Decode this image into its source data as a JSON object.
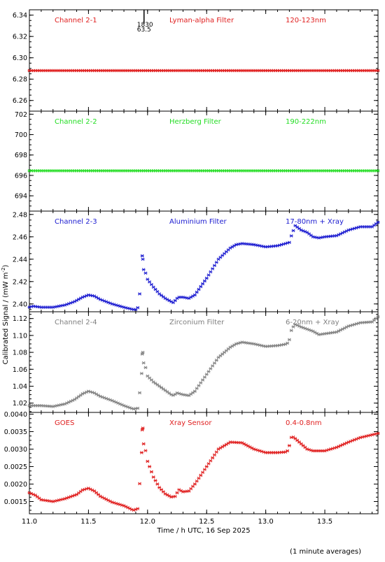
{
  "chart_data": {
    "type": "scatter",
    "xlabel": "Time / h UTC, 16 Sep 2025",
    "ylabel": "Calibrated Signal / (mW m",
    "ylabel_sup": "-2",
    "ylabel_close": ")",
    "footnote": "(1 minute averages)",
    "marker_annotation": [
      "1830",
      "63.5"
    ],
    "marker_x": 11.97,
    "xlim": [
      11.0,
      13.95
    ],
    "xticks": [
      11.0,
      11.5,
      12.0,
      12.5,
      13.0,
      13.5
    ],
    "xtick_labels": [
      "11.0",
      "11.5",
      "12.0",
      "12.5",
      "13.0",
      "13.5"
    ],
    "panels": [
      {
        "channel": "Channel 2-1",
        "filter": "Lyman-alpha Filter",
        "band": "120-123nm",
        "color": "#e02020",
        "ylim": [
          6.25,
          6.345
        ],
        "yticks": [
          6.26,
          6.28,
          6.3,
          6.32,
          6.34
        ],
        "ytick_labels": [
          "6.26",
          "6.28",
          "6.30",
          "6.32",
          "6.34"
        ],
        "keypoints": [
          [
            11.0,
            6.288
          ],
          [
            13.95,
            6.288
          ]
        ],
        "gap": null
      },
      {
        "channel": "Channel 2-2",
        "filter": "Herzberg Filter",
        "band": "190-222nm",
        "color": "#22dd22",
        "ylim": [
          692.5,
          702.3
        ],
        "yticks": [
          694,
          696,
          698,
          700,
          702
        ],
        "ytick_labels": [
          "694",
          "696",
          "698",
          "700",
          "702"
        ],
        "keypoints": [
          [
            11.0,
            696.45
          ],
          [
            13.95,
            696.45
          ]
        ],
        "gap": null
      },
      {
        "channel": "Channel 2-3",
        "filter": "Aluminium Filter",
        "band": "17-80nm + Xray",
        "color": "#1a1ad0",
        "ylim": [
          2.393,
          2.483
        ],
        "yticks": [
          2.4,
          2.42,
          2.44,
          2.46,
          2.48
        ],
        "ytick_labels": [
          "2.40",
          "2.42",
          "2.44",
          "2.46",
          "2.48"
        ],
        "keypoints": [
          [
            11.0,
            2.397
          ],
          [
            11.03,
            2.398
          ],
          [
            11.1,
            2.397
          ],
          [
            11.2,
            2.397
          ],
          [
            11.3,
            2.399
          ],
          [
            11.38,
            2.402
          ],
          [
            11.45,
            2.406
          ],
          [
            11.5,
            2.408
          ],
          [
            11.55,
            2.407
          ],
          [
            11.6,
            2.404
          ],
          [
            11.7,
            2.4
          ],
          [
            11.8,
            2.397
          ],
          [
            11.88,
            2.395
          ],
          [
            11.9,
            2.395
          ],
          [
            11.92,
            2.397
          ],
          [
            11.95,
            2.424
          ],
          [
            11.97,
            2.432
          ],
          [
            12.0,
            2.422
          ],
          [
            12.05,
            2.415
          ],
          [
            12.1,
            2.409
          ],
          [
            12.15,
            2.405
          ],
          [
            12.2,
            2.402
          ],
          [
            12.22,
            2.401
          ],
          [
            12.24,
            2.404
          ],
          [
            12.26,
            2.406
          ],
          [
            12.3,
            2.406
          ],
          [
            12.35,
            2.405
          ],
          [
            12.4,
            2.408
          ],
          [
            12.5,
            2.423
          ],
          [
            12.6,
            2.44
          ],
          [
            12.7,
            2.45
          ],
          [
            12.75,
            2.453
          ],
          [
            12.8,
            2.454
          ],
          [
            12.9,
            2.453
          ],
          [
            13.0,
            2.451
          ],
          [
            13.1,
            2.452
          ],
          [
            13.2,
            2.455
          ],
          [
            13.22,
            2.462
          ],
          [
            13.25,
            2.47
          ],
          [
            13.3,
            2.466
          ],
          [
            13.35,
            2.464
          ],
          [
            13.4,
            2.46
          ],
          [
            13.45,
            2.459
          ],
          [
            13.5,
            2.46
          ],
          [
            13.6,
            2.461
          ],
          [
            13.7,
            2.466
          ],
          [
            13.8,
            2.469
          ],
          [
            13.9,
            2.469
          ],
          [
            13.95,
            2.473
          ]
        ],
        "gap": [
          11.94,
          11.96
        ],
        "extra_points": [
          [
            11.96,
            2.44
          ],
          [
            11.955,
            2.443
          ]
        ]
      },
      {
        "channel": "Channel 2-4",
        "filter": "Zirconium Filter",
        "band": "6-20nm + Xray",
        "color": "#808080",
        "ylim": [
          1.009,
          1.128
        ],
        "yticks": [
          1.02,
          1.04,
          1.06,
          1.08,
          1.1,
          1.12
        ],
        "ytick_labels": [
          "1.02",
          "1.04",
          "1.06",
          "1.08",
          "1.10",
          "1.12"
        ],
        "keypoints": [
          [
            11.0,
            1.017
          ],
          [
            11.1,
            1.017
          ],
          [
            11.2,
            1.016
          ],
          [
            11.3,
            1.019
          ],
          [
            11.38,
            1.024
          ],
          [
            11.45,
            1.031
          ],
          [
            11.5,
            1.034
          ],
          [
            11.55,
            1.032
          ],
          [
            11.6,
            1.028
          ],
          [
            11.7,
            1.023
          ],
          [
            11.8,
            1.017
          ],
          [
            11.88,
            1.013
          ],
          [
            11.92,
            1.014
          ],
          [
            11.95,
            1.055
          ],
          [
            11.97,
            1.07
          ],
          [
            12.0,
            1.052
          ],
          [
            12.05,
            1.045
          ],
          [
            12.1,
            1.04
          ],
          [
            12.15,
            1.035
          ],
          [
            12.2,
            1.03
          ],
          [
            12.22,
            1.029
          ],
          [
            12.25,
            1.032
          ],
          [
            12.3,
            1.03
          ],
          [
            12.35,
            1.029
          ],
          [
            12.4,
            1.034
          ],
          [
            12.5,
            1.054
          ],
          [
            12.6,
            1.074
          ],
          [
            12.7,
            1.086
          ],
          [
            12.75,
            1.09
          ],
          [
            12.8,
            1.092
          ],
          [
            12.9,
            1.09
          ],
          [
            13.0,
            1.087
          ],
          [
            13.1,
            1.088
          ],
          [
            13.18,
            1.09
          ],
          [
            13.2,
            1.095
          ],
          [
            13.22,
            1.108
          ],
          [
            13.25,
            1.113
          ],
          [
            13.3,
            1.11
          ],
          [
            13.4,
            1.105
          ],
          [
            13.45,
            1.101
          ],
          [
            13.5,
            1.102
          ],
          [
            13.6,
            1.104
          ],
          [
            13.7,
            1.111
          ],
          [
            13.8,
            1.115
          ],
          [
            13.9,
            1.116
          ],
          [
            13.95,
            1.122
          ]
        ],
        "gap": null,
        "extra_points": [
          [
            11.96,
            1.08
          ],
          [
            11.955,
            1.078
          ]
        ]
      },
      {
        "channel": "GOES",
        "filter": "Xray Sensor",
        "band": "0.4-0.8nm",
        "color": "#e02020",
        "ylim": [
          0.00115,
          0.00405
        ],
        "yticks": [
          0.0015,
          0.002,
          0.0025,
          0.003,
          0.0035,
          0.004
        ],
        "ytick_labels": [
          "0.0015",
          "0.0020",
          "0.0025",
          "0.0030",
          "0.0035",
          "0.0040"
        ],
        "keypoints": [
          [
            11.0,
            0.00175
          ],
          [
            11.05,
            0.00168
          ],
          [
            11.1,
            0.00155
          ],
          [
            11.2,
            0.0015
          ],
          [
            11.3,
            0.00158
          ],
          [
            11.4,
            0.0017
          ],
          [
            11.45,
            0.00183
          ],
          [
            11.5,
            0.00188
          ],
          [
            11.55,
            0.0018
          ],
          [
            11.6,
            0.00165
          ],
          [
            11.7,
            0.00148
          ],
          [
            11.8,
            0.00138
          ],
          [
            11.88,
            0.00125
          ],
          [
            11.92,
            0.0013
          ],
          [
            11.95,
            0.0029
          ],
          [
            11.97,
            0.0032
          ],
          [
            12.0,
            0.00265
          ],
          [
            12.05,
            0.0022
          ],
          [
            12.1,
            0.0019
          ],
          [
            12.15,
            0.00172
          ],
          [
            12.2,
            0.00163
          ],
          [
            12.24,
            0.00165
          ],
          [
            12.26,
            0.00185
          ],
          [
            12.3,
            0.00178
          ],
          [
            12.35,
            0.0018
          ],
          [
            12.4,
            0.002
          ],
          [
            12.5,
            0.0025
          ],
          [
            12.6,
            0.003
          ],
          [
            12.7,
            0.0032
          ],
          [
            12.8,
            0.00318
          ],
          [
            12.9,
            0.003
          ],
          [
            13.0,
            0.0029
          ],
          [
            13.1,
            0.0029
          ],
          [
            13.18,
            0.00292
          ],
          [
            13.2,
            0.0031
          ],
          [
            13.22,
            0.00338
          ],
          [
            13.25,
            0.0033
          ],
          [
            13.3,
            0.00315
          ],
          [
            13.35,
            0.003
          ],
          [
            13.4,
            0.00295
          ],
          [
            13.5,
            0.00295
          ],
          [
            13.6,
            0.00305
          ],
          [
            13.7,
            0.0032
          ],
          [
            13.8,
            0.00333
          ],
          [
            13.95,
            0.00345
          ]
        ],
        "gap": null,
        "extra_points": [
          [
            11.96,
            0.0036
          ],
          [
            11.955,
            0.00355
          ]
        ]
      }
    ]
  }
}
